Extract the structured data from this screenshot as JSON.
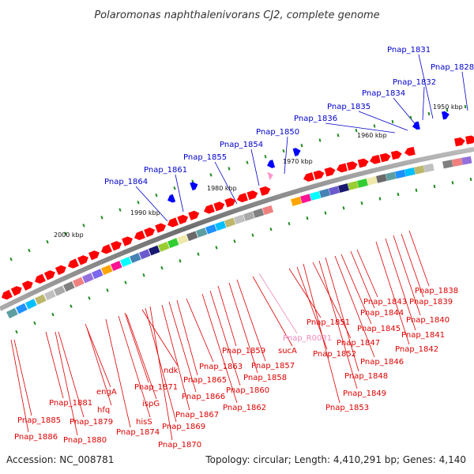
{
  "title": "Polaromonas naphthalenivorans CJ2, complete genome",
  "footer": {
    "accession": "Accession: NC_008781",
    "summary": "Topology: circular; Length: 4,410,291 bp; Genes: 4,140"
  },
  "colors": {
    "forward_gene": "#ff0000",
    "reverse_gene": "#0000ff",
    "rna_gene": "#ff99cc",
    "label_top": "#0000cc",
    "label_bottom": "#dd0000",
    "label_rna": "#ee88bb",
    "tick": "#228b22",
    "backbone": "#777777"
  },
  "kbp_ticks": [
    "2000 kbp",
    "1990 kbp",
    "1980 kbp",
    "1970 kbp",
    "1960 kbp",
    "1950 kbp"
  ],
  "top_labels": [
    "Pnap_1864",
    "Pnap_1861",
    "Pnap_1855",
    "Pnap_1854",
    "Pnap_1850",
    "Pnap_1836",
    "Pnap_1835",
    "Pnap_1834",
    "Pnap_1832",
    "Pnap_1831",
    "Pnap_1828"
  ],
  "bottom_labels": [
    "Pnap_1885",
    "Pnap_1886",
    "Pnap_1881",
    "Pnap_1879",
    "Pnap_1880",
    "hfq",
    "engA",
    "Pnap_1874",
    "hisS",
    "ispG",
    "Pnap_1871",
    "ndk",
    "Pnap_1869",
    "Pnap_1870",
    "Pnap_1867",
    "Pnap_1866",
    "Pnap_1865",
    "Pnap_1863",
    "Pnap_1862",
    "Pnap_1860",
    "Pnap_1859",
    "Pnap_1858",
    "Pnap_1857",
    "sucA",
    "Pnap_R0031",
    "Pnap_1851",
    "Pnap_1852",
    "Pnap_1853",
    "Pnap_1847",
    "Pnap_1849",
    "Pnap_1848",
    "Pnap_1846",
    "Pnap_1845",
    "Pnap_1844",
    "Pnap_1843",
    "Pnap_1842",
    "Pnap_1841",
    "Pnap_1840",
    "Pnap_1839",
    "Pnap_1838"
  ]
}
